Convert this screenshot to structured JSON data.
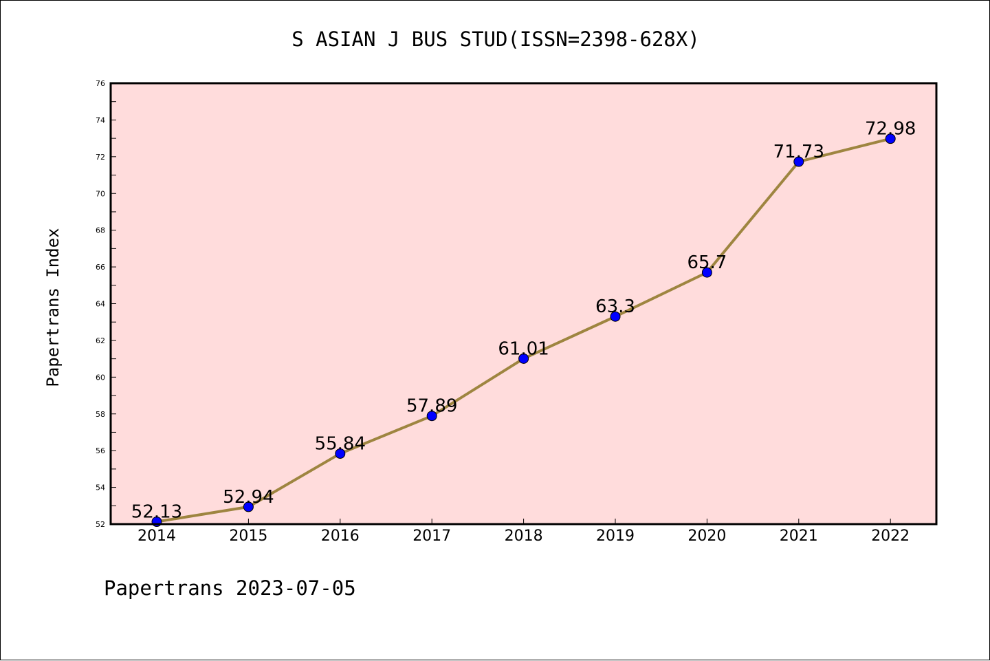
{
  "chart_data": {
    "type": "line",
    "title": "S ASIAN J BUS STUD(ISSN=2398-628X)",
    "ylabel": "Papertrans Index",
    "xlabel": "",
    "categories": [
      "2014",
      "2015",
      "2016",
      "2017",
      "2018",
      "2019",
      "2020",
      "2021",
      "2022"
    ],
    "values": [
      52.13,
      52.94,
      55.84,
      57.89,
      61.01,
      63.3,
      65.7,
      71.73,
      72.98
    ],
    "data_labels": [
      "52.13",
      "52.94",
      "55.84",
      "57.89",
      "61.01",
      "63.3",
      "65.7",
      "71.73",
      "72.98"
    ],
    "ylim": [
      52,
      76
    ],
    "yticks": [
      52,
      54,
      56,
      58,
      60,
      62,
      64,
      66,
      68,
      70,
      72,
      74,
      76
    ],
    "grid": false,
    "colors": {
      "plot_background": "#FFDCDC",
      "line": "#9E8540",
      "marker": "#0000FF"
    }
  },
  "footer": "Papertrans 2023-07-05"
}
